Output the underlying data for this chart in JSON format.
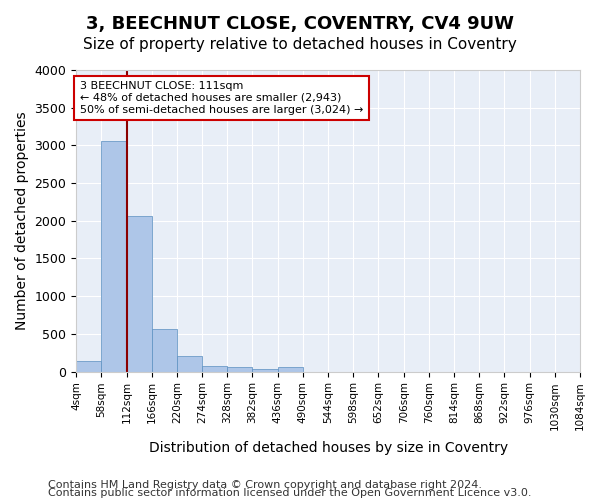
{
  "title": "3, BEECHNUT CLOSE, COVENTRY, CV4 9UW",
  "subtitle": "Size of property relative to detached houses in Coventry",
  "xlabel": "Distribution of detached houses by size in Coventry",
  "ylabel": "Number of detached properties",
  "bar_values": [
    140,
    3060,
    2060,
    560,
    200,
    80,
    55,
    40,
    55,
    0,
    0,
    0,
    0,
    0,
    0,
    0,
    0,
    0,
    0,
    0
  ],
  "bin_labels": [
    "4sqm",
    "58sqm",
    "112sqm",
    "166sqm",
    "220sqm",
    "274sqm",
    "328sqm",
    "382sqm",
    "436sqm",
    "490sqm",
    "544sqm",
    "598sqm",
    "652sqm",
    "706sqm",
    "760sqm",
    "814sqm",
    "868sqm",
    "922sqm",
    "976sqm",
    "1030sqm",
    "1084sqm"
  ],
  "bar_color": "#aec6e8",
  "bar_edge_color": "#5a8fc0",
  "vline_x": 2,
  "vline_color": "#8b0000",
  "annotation_text": "3 BEECHNUT CLOSE: 111sqm\n← 48% of detached houses are smaller (2,943)\n50% of semi-detached houses are larger (3,024) →",
  "annotation_box_color": "#ffffff",
  "annotation_box_edge": "#cc0000",
  "ylim": [
    0,
    4000
  ],
  "yticks": [
    0,
    500,
    1000,
    1500,
    2000,
    2500,
    3000,
    3500,
    4000
  ],
  "background_color": "#e8eef7",
  "footer_line1": "Contains HM Land Registry data © Crown copyright and database right 2024.",
  "footer_line2": "Contains public sector information licensed under the Open Government Licence v3.0.",
  "title_fontsize": 13,
  "subtitle_fontsize": 11,
  "xlabel_fontsize": 10,
  "ylabel_fontsize": 10,
  "footer_fontsize": 8
}
